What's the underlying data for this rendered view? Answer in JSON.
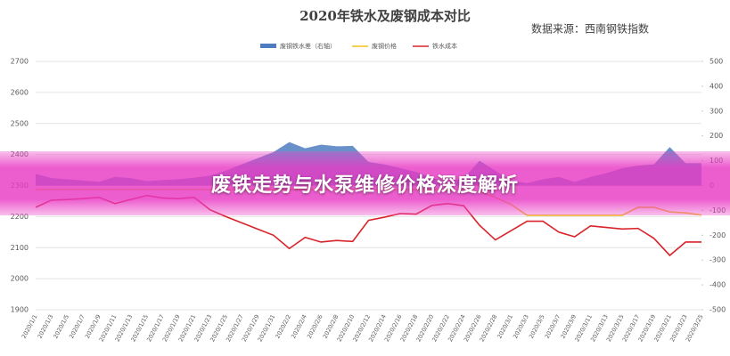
{
  "chart_data": {
    "type": "combo",
    "title": "2020年铁水及废钢成本对比",
    "source": "数据来源：西南钢铁指数",
    "categories": [
      "2020/1/1",
      "2020/1/3",
      "2020/1/5",
      "2020/1/7",
      "2020/1/9",
      "2020/1/11",
      "2020/1/13",
      "2020/1/15",
      "2020/1/17",
      "2020/1/19",
      "2020/1/21",
      "2020/1/23",
      "2020/1/25",
      "2020/1/27",
      "2020/1/29",
      "2020/1/31",
      "2020/2/2",
      "2020/2/4",
      "2020/2/6",
      "2020/2/8",
      "2020/2/10",
      "2020/2/12",
      "2020/2/14",
      "2020/2/16",
      "2020/2/18",
      "2020/2/20",
      "2020/2/22",
      "2020/2/24",
      "2020/2/26",
      "2020/2/28",
      "2020/3/1",
      "2020/3/3",
      "2020/3/5",
      "2020/3/7",
      "2020/3/9",
      "2020/3/11",
      "2020/3/13",
      "2020/3/15",
      "2020/3/17",
      "2020/3/19",
      "2020/3/21",
      "2020/3/23",
      "2020/3/25"
    ],
    "series": [
      {
        "name": "废钢铁水差（右轴）",
        "type": "area",
        "axis": "y2",
        "color": "#4f7cc0",
        "values": [
          47,
          30,
          25,
          20,
          15,
          35,
          30,
          18,
          22,
          25,
          32,
          40,
          60,
          85,
          110,
          135,
          175,
          150,
          165,
          158,
          160,
          95,
          85,
          70,
          55,
          32,
          15,
          30,
          100,
          60,
          20,
          10,
          25,
          35,
          15,
          35,
          50,
          70,
          80,
          85,
          155,
          90,
          90
        ]
      },
      {
        "name": "废钢价格",
        "type": "line",
        "color": "#f2c21b",
        "values": [
          2287,
          2287,
          2287,
          2287,
          2287,
          2287,
          2287,
          2287,
          2287,
          2287,
          2287,
          2287,
          2287,
          2287,
          2287,
          2287,
          2287,
          2287,
          2287,
          2287,
          2287,
          2287,
          2287,
          2287,
          2287,
          2287,
          2287,
          2287,
          2280,
          2262,
          2239,
          2204,
          2204,
          2204,
          2204,
          2204,
          2204,
          2204,
          2230,
          2230,
          2215,
          2212,
          2205
        ]
      },
      {
        "name": "铁水成本",
        "type": "line",
        "color": "#d9232a",
        "values": [
          2230,
          2253,
          2255,
          2258,
          2262,
          2242,
          2255,
          2268,
          2260,
          2258,
          2262,
          2222,
          2200,
          2180,
          2160,
          2140,
          2097,
          2133,
          2118,
          2123,
          2120,
          2188,
          2198,
          2210,
          2208,
          2236,
          2242,
          2235,
          2172,
          2125,
          2155,
          2185,
          2185,
          2150,
          2135,
          2170,
          2165,
          2160,
          2162,
          2130,
          2075,
          2118,
          2118
        ]
      }
    ],
    "ylim": [
      1900,
      2700
    ],
    "yticks": [
      1900,
      2000,
      2100,
      2200,
      2300,
      2400,
      2500,
      2600,
      2700
    ],
    "y2lim": [
      -500,
      500
    ],
    "y2ticks": [
      -500,
      -400,
      -300,
      -200,
      -100,
      0,
      100,
      200,
      300,
      400,
      500
    ],
    "grid": true,
    "legend": "top"
  },
  "banner": {
    "title": "废铁走势与水泵维修价格深度解析"
  }
}
